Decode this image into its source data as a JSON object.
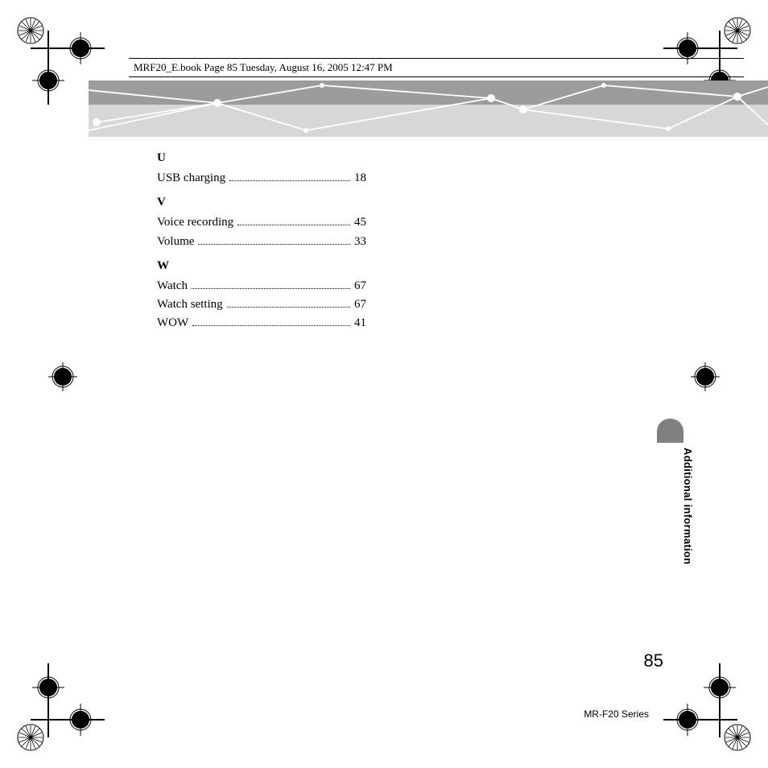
{
  "header": "MRF20_E.book  Page 85  Tuesday, August 16, 2005  12:47 PM",
  "banner": {
    "background_top": "#9c9c9c",
    "background_bottom": "#d7d7d7",
    "line_color": "#ffffff",
    "node_color": "#ffffff"
  },
  "index": {
    "sections": [
      {
        "letter": "U",
        "entries": [
          {
            "term": "USB charging",
            "page": "18"
          }
        ]
      },
      {
        "letter": "V",
        "entries": [
          {
            "term": "Voice recording",
            "page": "45"
          },
          {
            "term": "Volume",
            "page": "33"
          }
        ]
      },
      {
        "letter": "W",
        "entries": [
          {
            "term": "Watch",
            "page": "67"
          },
          {
            "term": "Watch setting",
            "page": "67"
          },
          {
            "term": "WOW",
            "page": "41"
          }
        ]
      }
    ]
  },
  "side_tab": {
    "label": "Additional information",
    "cap_color": "#808080"
  },
  "page_number": "85",
  "series": "MR-F20 Series",
  "colors": {
    "text": "#000000",
    "background": "#ffffff"
  }
}
